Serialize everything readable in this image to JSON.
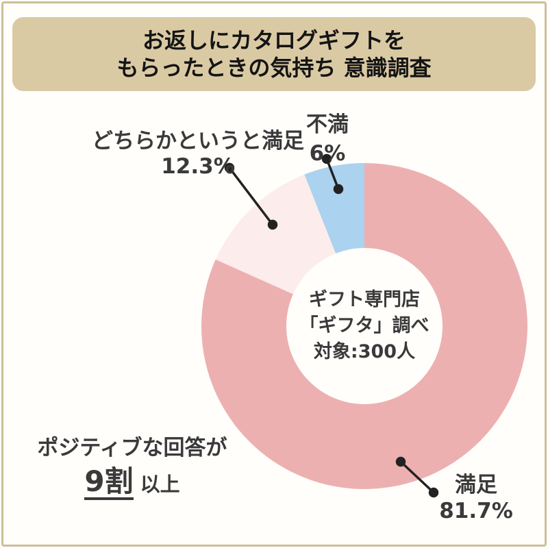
{
  "header": {
    "line1": "お返しにカタログギフトを",
    "line2": "もらったときの気持ち 意識調査"
  },
  "chart_data": {
    "type": "pie",
    "subtype": "donut",
    "title": "お返しにカタログギフトを もらったときの気持ち 意識調査",
    "direction": "clockwise",
    "start_angle": "12-oclock",
    "slices": [
      {
        "label": "満足",
        "value": 81.7,
        "display": "81.7%",
        "color": "#edb0b0"
      },
      {
        "label": "どちらかというと満足",
        "value": 12.3,
        "display": "12.3%",
        "color": "#fcecec"
      },
      {
        "label": "不満",
        "value": 6.0,
        "display": "6%",
        "color": "#abd2ee"
      }
    ],
    "center_note": [
      "ギフト専門店",
      "「ギフタ」調べ",
      "対象:300人"
    ],
    "annotation": "ポジティブな回答が9割以上"
  },
  "center_label": {
    "line1": "ギフト専門店",
    "line2": "「ギフタ」調べ",
    "line3": "対象:300人"
  },
  "note": {
    "line1": "ポジティブな回答が",
    "highlight": "9割",
    "suffix": "以上"
  },
  "colors": {
    "banner": "#dacaa4",
    "frame_border": "#cdbf98",
    "satisfied": "#edb0b0",
    "somewhat_satisfied": "#fcecec",
    "dissatisfied": "#abd2ee",
    "leader_line": "#222222",
    "text": "#3a3a3a"
  }
}
